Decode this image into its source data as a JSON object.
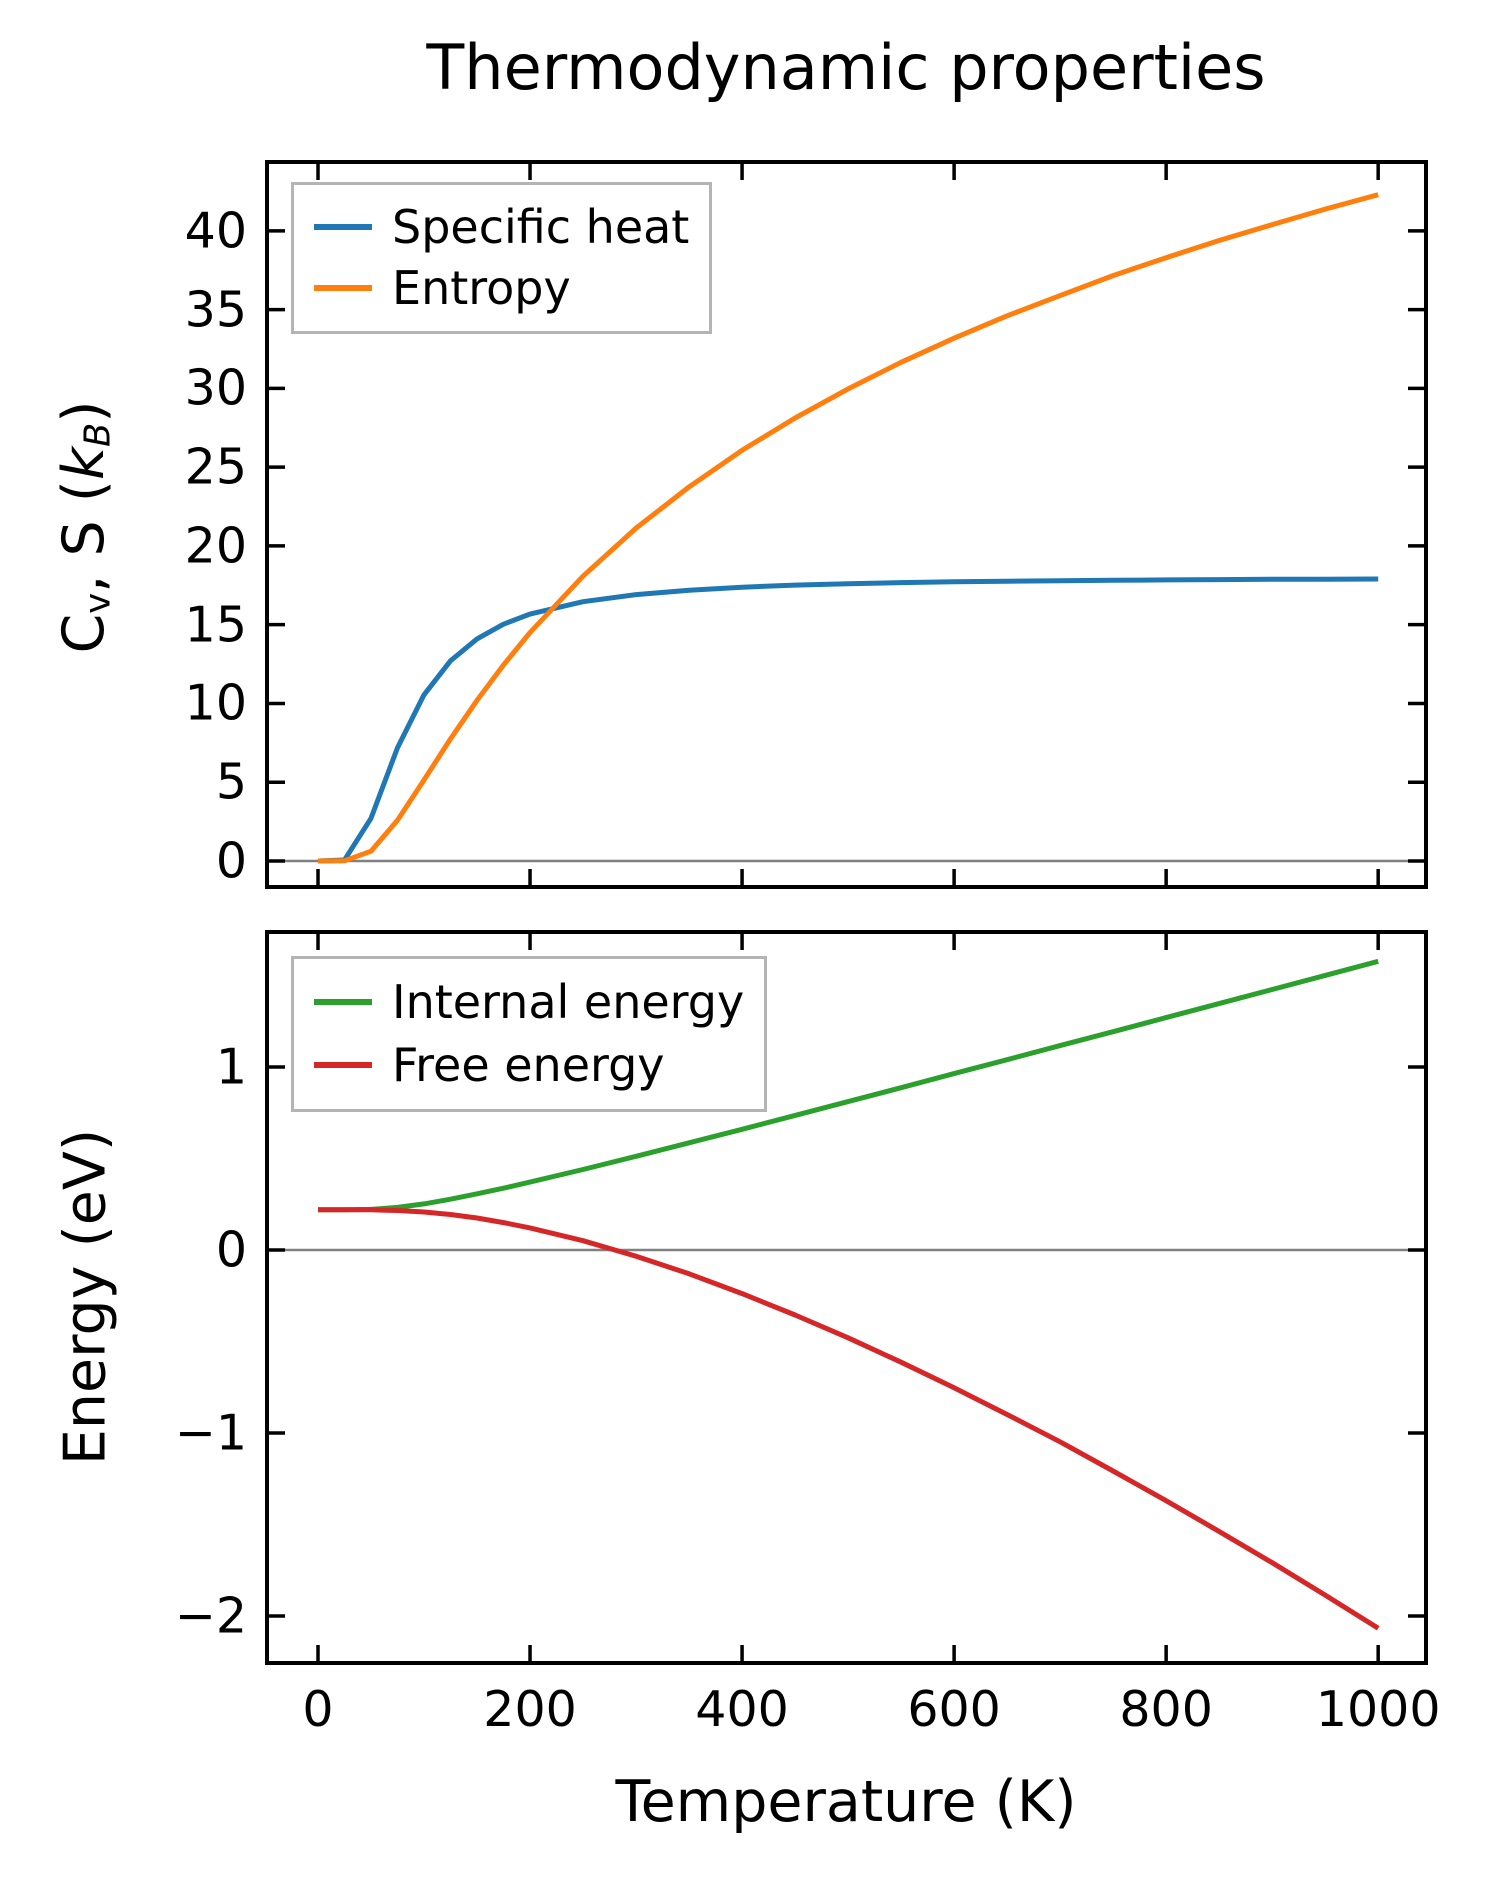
{
  "figure": {
    "title": "Thermodynamic properties",
    "background": "#ffffff",
    "axis_color": "#000000"
  },
  "chart_data": [
    {
      "type": "line",
      "title": "Thermodynamic properties",
      "xlabel": "",
      "ylabel": "C_v, S (k_B)",
      "ylabel_segments": [
        {
          "text": "C"
        },
        {
          "text": "v",
          "sub": true
        },
        {
          "text": ", S ("
        },
        {
          "text": "k",
          "italic": true
        },
        {
          "text": "B",
          "sub": true,
          "italic": true
        },
        {
          "text": ")"
        }
      ],
      "x": [
        0,
        25,
        50,
        75,
        100,
        125,
        150,
        175,
        200,
        250,
        300,
        350,
        400,
        450,
        500,
        550,
        600,
        650,
        700,
        750,
        800,
        850,
        900,
        950,
        1000
      ],
      "series": [
        {
          "name": "Specific heat",
          "color": "#1f77b4",
          "values": [
            0,
            0.06,
            2.71,
            7.19,
            10.55,
            12.71,
            14.1,
            15.03,
            15.67,
            16.46,
            16.91,
            17.19,
            17.38,
            17.51,
            17.6,
            17.67,
            17.72,
            17.76,
            17.79,
            17.82,
            17.84,
            17.86,
            17.88,
            17.89,
            17.9
          ]
        },
        {
          "name": "Entropy",
          "color": "#ff7f0e",
          "values": [
            0,
            0.01,
            0.62,
            2.58,
            5.14,
            7.75,
            10.19,
            12.44,
            14.5,
            18.08,
            21.13,
            23.75,
            26.07,
            28.12,
            29.97,
            31.66,
            33.19,
            34.61,
            35.89,
            37.16,
            38.3,
            39.39,
            40.4,
            41.38,
            42.3
          ]
        }
      ],
      "xlim": [
        -50,
        1047
      ],
      "ylim": [
        -1.78,
        44.5
      ],
      "xticks": [
        0,
        200,
        400,
        600,
        800,
        1000
      ],
      "xtick_labels_visible": false,
      "yticks": [
        0,
        5,
        10,
        15,
        20,
        25,
        30,
        35,
        40
      ],
      "grid": false,
      "zero_line": {
        "y": 0,
        "color": "#808080"
      },
      "legend": {
        "position": "upper left",
        "entries": [
          "Specific heat",
          "Entropy"
        ]
      }
    },
    {
      "type": "line",
      "title": "",
      "xlabel": "Temperature (K)",
      "ylabel": "Energy (eV)",
      "ylabel_segments": [
        {
          "text": "Energy (eV)"
        }
      ],
      "x": [
        0,
        25,
        50,
        75,
        100,
        125,
        150,
        175,
        200,
        250,
        300,
        350,
        400,
        450,
        500,
        550,
        600,
        650,
        700,
        750,
        800,
        850,
        900,
        950,
        1000
      ],
      "series": [
        {
          "name": "Internal energy",
          "color": "#2ca02c",
          "values": [
            0.22,
            0.22,
            0.222,
            0.233,
            0.252,
            0.278,
            0.307,
            0.338,
            0.371,
            0.44,
            0.512,
            0.586,
            0.66,
            0.736,
            0.811,
            0.887,
            0.964,
            1.04,
            1.117,
            1.193,
            1.27,
            1.347,
            1.424,
            1.501,
            1.578
          ]
        },
        {
          "name": "Free energy",
          "color": "#d62728",
          "values": [
            0.22,
            0.22,
            0.22,
            0.216,
            0.208,
            0.194,
            0.175,
            0.15,
            0.121,
            0.051,
            -0.034,
            -0.13,
            -0.238,
            -0.355,
            -0.48,
            -0.613,
            -0.753,
            -0.899,
            -1.048,
            -1.208,
            -1.37,
            -1.538,
            -1.709,
            -1.886,
            -2.067
          ]
        }
      ],
      "xlim": [
        -50,
        1047
      ],
      "ylim": [
        -2.268,
        1.749
      ],
      "xticks": [
        0,
        200,
        400,
        600,
        800,
        1000
      ],
      "xtick_labels_visible": true,
      "yticks": [
        -2,
        -1,
        0,
        1
      ],
      "grid": false,
      "zero_line": {
        "y": 0,
        "color": "#808080"
      },
      "legend": {
        "position": "upper left",
        "entries": [
          "Internal energy",
          "Free energy"
        ]
      }
    }
  ]
}
